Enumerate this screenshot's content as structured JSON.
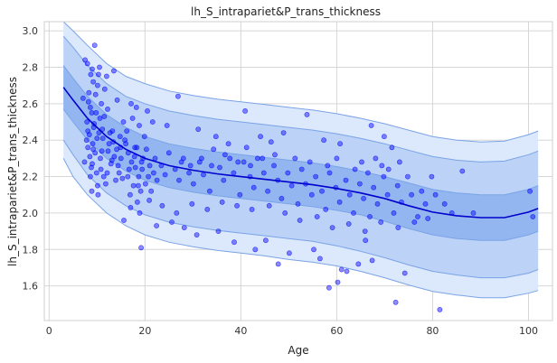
{
  "chart_data": {
    "type": "scatter",
    "title": "lh_S_intrapariet&P_trans_thickness",
    "xlabel": "Age",
    "ylabel": "lh_S_intrapariet&P_trans_thickness",
    "xlim": [
      -1,
      105
    ],
    "ylim": [
      1.41,
      3.05
    ],
    "xticks": [
      0,
      20,
      40,
      60,
      80,
      100
    ],
    "yticks": [
      1.6,
      1.8,
      2.0,
      2.2,
      2.4,
      2.6,
      2.8,
      3.0
    ],
    "grid": true,
    "colors": {
      "points": "#0000ff",
      "median_line": "#0000cc",
      "band_outer": "#dce8fb",
      "band_mid": "#bcd3f7",
      "band_inner": "#93b6f1",
      "band_edge": "#7aa3e6"
    },
    "centile_curves": {
      "x": [
        3,
        5,
        8,
        12,
        16,
        20,
        25,
        30,
        35,
        40,
        45,
        50,
        55,
        60,
        65,
        70,
        75,
        80,
        85,
        90,
        95,
        100,
        102
      ],
      "p50": [
        2.69,
        2.62,
        2.52,
        2.42,
        2.35,
        2.3,
        2.26,
        2.235,
        2.215,
        2.2,
        2.185,
        2.17,
        2.155,
        2.135,
        2.11,
        2.08,
        2.04,
        2.005,
        1.985,
        1.975,
        1.975,
        2.005,
        2.025
      ],
      "p25": [
        2.57,
        2.5,
        2.4,
        2.3,
        2.23,
        2.18,
        2.14,
        2.115,
        2.095,
        2.08,
        2.065,
        2.05,
        2.035,
        2.015,
        1.99,
        1.955,
        1.915,
        1.88,
        1.86,
        1.85,
        1.85,
        1.88,
        1.9
      ],
      "p75": [
        2.81,
        2.74,
        2.64,
        2.54,
        2.47,
        2.42,
        2.38,
        2.355,
        2.335,
        2.32,
        2.305,
        2.29,
        2.275,
        2.255,
        2.23,
        2.2,
        2.165,
        2.13,
        2.11,
        2.1,
        2.1,
        2.13,
        2.15
      ],
      "p05": [
        2.4,
        2.32,
        2.21,
        2.11,
        2.04,
        1.99,
        1.95,
        1.925,
        1.905,
        1.89,
        1.875,
        1.86,
        1.845,
        1.82,
        1.79,
        1.755,
        1.715,
        1.68,
        1.66,
        1.645,
        1.645,
        1.67,
        1.69
      ],
      "p95": [
        2.97,
        2.91,
        2.81,
        2.71,
        2.64,
        2.6,
        2.56,
        2.535,
        2.515,
        2.5,
        2.485,
        2.47,
        2.455,
        2.435,
        2.41,
        2.38,
        2.345,
        2.31,
        2.29,
        2.28,
        2.285,
        2.32,
        2.34
      ],
      "p01": [
        2.3,
        2.2,
        2.1,
        2.0,
        1.93,
        1.88,
        1.84,
        1.815,
        1.795,
        1.78,
        1.765,
        1.745,
        1.73,
        1.71,
        1.68,
        1.645,
        1.605,
        1.57,
        1.55,
        1.535,
        1.535,
        1.56,
        1.575
      ],
      "p99": [
        3.05,
        3.0,
        2.92,
        2.82,
        2.75,
        2.71,
        2.67,
        2.645,
        2.625,
        2.61,
        2.595,
        2.58,
        2.565,
        2.545,
        2.52,
        2.49,
        2.455,
        2.42,
        2.4,
        2.39,
        2.395,
        2.43,
        2.45
      ]
    },
    "points": [
      [
        7.5,
        2.84
      ],
      [
        8.0,
        2.82
      ],
      [
        9.0,
        2.79
      ],
      [
        10.5,
        2.8
      ],
      [
        13.5,
        2.78
      ],
      [
        9.2,
        2.72
      ],
      [
        8.3,
        2.66
      ],
      [
        10.1,
        2.7
      ],
      [
        11.6,
        2.68
      ],
      [
        7.1,
        2.63
      ],
      [
        8.6,
        2.58
      ],
      [
        9.8,
        2.55
      ],
      [
        10.9,
        2.6
      ],
      [
        12.2,
        2.57
      ],
      [
        7.9,
        2.5
      ],
      [
        9.3,
        2.47
      ],
      [
        10.4,
        2.44
      ],
      [
        11.2,
        2.41
      ],
      [
        8.1,
        2.36
      ],
      [
        9.6,
        2.33
      ],
      [
        10.7,
        2.3
      ],
      [
        7.4,
        2.28
      ],
      [
        8.8,
        2.25
      ],
      [
        9.9,
        2.22
      ],
      [
        11.4,
        2.2
      ],
      [
        12.5,
        2.38
      ],
      [
        13.2,
        2.45
      ],
      [
        14.1,
        2.35
      ],
      [
        15.0,
        2.3
      ],
      [
        14.6,
        2.22
      ],
      [
        13.9,
        2.18
      ],
      [
        15.8,
        2.4
      ],
      [
        16.5,
        2.33
      ],
      [
        17.2,
        2.28
      ],
      [
        18.0,
        2.25
      ],
      [
        18.7,
        2.2
      ],
      [
        17.6,
        2.15
      ],
      [
        16.9,
        2.1
      ],
      [
        18.4,
        2.06
      ],
      [
        19.1,
        2.12
      ],
      [
        19.6,
        2.3
      ],
      [
        20.3,
        2.35
      ],
      [
        21.0,
        2.26
      ],
      [
        21.8,
        2.22
      ],
      [
        22.5,
        2.18
      ],
      [
        19.9,
        2.42
      ],
      [
        18.8,
        2.48
      ],
      [
        17.4,
        2.52
      ],
      [
        16.2,
        2.45
      ],
      [
        15.5,
        2.5
      ],
      [
        8.9,
        2.12
      ],
      [
        10.2,
        2.1
      ],
      [
        11.8,
        2.16
      ],
      [
        12.9,
        2.27
      ],
      [
        13.6,
        2.31
      ],
      [
        14.8,
        2.42
      ],
      [
        16.0,
        2.38
      ],
      [
        17.9,
        2.36
      ],
      [
        19.3,
        2.28
      ],
      [
        20.7,
        2.2
      ],
      [
        9.1,
        2.38
      ],
      [
        8.4,
        2.43
      ],
      [
        10.6,
        2.52
      ],
      [
        11.1,
        2.46
      ],
      [
        12.3,
        2.34
      ],
      [
        13.1,
        2.29
      ],
      [
        14.4,
        2.26
      ],
      [
        15.3,
        2.19
      ],
      [
        16.7,
        2.24
      ],
      [
        17.8,
        2.31
      ],
      [
        18.3,
        2.36
      ],
      [
        19.4,
        2.24
      ],
      [
        20.1,
        2.16
      ],
      [
        21.3,
        2.12
      ],
      [
        22.1,
        2.3
      ],
      [
        23.4,
        2.26
      ],
      [
        24.2,
        2.21
      ],
      [
        25.0,
        2.33
      ],
      [
        26.3,
        2.24
      ],
      [
        27.1,
        2.18
      ],
      [
        28.0,
        2.3
      ],
      [
        29.2,
        2.22
      ],
      [
        30.1,
        2.16
      ],
      [
        31.4,
        2.28
      ],
      [
        32.2,
        2.21
      ],
      [
        33.5,
        2.12
      ],
      [
        34.3,
        2.35
      ],
      [
        35.6,
        2.25
      ],
      [
        36.4,
        2.18
      ],
      [
        37.7,
        2.3
      ],
      [
        38.5,
        2.22
      ],
      [
        39.8,
        2.1
      ],
      [
        40.6,
        2.28
      ],
      [
        41.9,
        2.2
      ],
      [
        42.7,
        2.14
      ],
      [
        43.5,
        2.3
      ],
      [
        44.8,
        2.22
      ],
      [
        45.6,
        2.12
      ],
      [
        46.9,
        2.26
      ],
      [
        47.7,
        2.18
      ],
      [
        48.5,
        2.08
      ],
      [
        49.8,
        2.22
      ],
      [
        50.6,
        2.15
      ],
      [
        51.9,
        2.05
      ],
      [
        52.7,
        2.24
      ],
      [
        53.5,
        2.16
      ],
      [
        54.8,
        2.1
      ],
      [
        55.6,
        2.2
      ],
      [
        56.9,
        2.12
      ],
      [
        57.7,
        2.02
      ],
      [
        58.5,
        2.22
      ],
      [
        59.8,
        2.14
      ],
      [
        60.6,
        2.06
      ],
      [
        61.9,
        2.18
      ],
      [
        62.7,
        2.1
      ],
      [
        63.5,
        2.0
      ],
      [
        64.8,
        2.16
      ],
      [
        65.6,
        2.08
      ],
      [
        66.9,
        1.98
      ],
      [
        67.7,
        2.14
      ],
      [
        68.5,
        2.05
      ],
      [
        69.8,
        2.2
      ],
      [
        70.6,
        2.1
      ],
      [
        71.9,
        2.0
      ],
      [
        72.7,
        2.15
      ],
      [
        73.5,
        2.06
      ],
      [
        74.8,
        2.2
      ],
      [
        75.6,
        2.1
      ],
      [
        76.9,
        1.98
      ],
      [
        77.7,
        2.12
      ],
      [
        78.5,
        2.05
      ],
      [
        79.8,
        2.2
      ],
      [
        80.6,
        2.1
      ],
      [
        82.5,
        2.05
      ],
      [
        84.0,
        2.0
      ],
      [
        86.2,
        2.23
      ],
      [
        88.5,
        2.0
      ],
      [
        100.3,
        2.12
      ],
      [
        100.9,
        1.98
      ],
      [
        81.5,
        1.47
      ],
      [
        72.3,
        1.51
      ],
      [
        58.4,
        1.59
      ],
      [
        60.2,
        1.62
      ],
      [
        62.1,
        1.68
      ],
      [
        64.5,
        1.72
      ],
      [
        66.0,
        1.85
      ],
      [
        67.4,
        1.74
      ],
      [
        74.2,
        1.67
      ],
      [
        61.0,
        1.69
      ],
      [
        56.5,
        1.75
      ],
      [
        55.2,
        1.8
      ],
      [
        50.1,
        1.78
      ],
      [
        47.8,
        1.72
      ],
      [
        45.2,
        1.85
      ],
      [
        43.0,
        1.8
      ],
      [
        38.6,
        1.84
      ],
      [
        35.3,
        1.9
      ],
      [
        30.8,
        1.88
      ],
      [
        28.2,
        1.92
      ],
      [
        25.6,
        1.95
      ],
      [
        22.4,
        1.93
      ],
      [
        19.2,
        1.81
      ],
      [
        15.6,
        1.96
      ],
      [
        18.9,
        2.0
      ],
      [
        17.0,
        2.03
      ],
      [
        20.9,
        2.07
      ],
      [
        23.6,
        2.04
      ],
      [
        26.6,
        2.0
      ],
      [
        29.8,
        2.05
      ],
      [
        33.0,
        2.02
      ],
      [
        36.1,
        2.06
      ],
      [
        39.2,
        2.04
      ],
      [
        42.3,
        2.02
      ],
      [
        45.9,
        2.04
      ],
      [
        49.2,
        2.0
      ],
      [
        52.3,
        1.96
      ],
      [
        55.9,
        1.98
      ],
      [
        59.1,
        1.92
      ],
      [
        62.5,
        1.94
      ],
      [
        65.9,
        1.9
      ],
      [
        69.2,
        1.95
      ],
      [
        72.8,
        1.92
      ],
      [
        76.2,
        1.95
      ],
      [
        79.0,
        1.97
      ],
      [
        37.4,
        2.38
      ],
      [
        40.9,
        2.56
      ],
      [
        53.8,
        2.54
      ],
      [
        67.2,
        2.48
      ],
      [
        69.9,
        2.42
      ],
      [
        71.5,
        2.36
      ],
      [
        60.7,
        2.38
      ],
      [
        57.3,
        2.4
      ],
      [
        48.9,
        2.44
      ],
      [
        46.3,
        2.39
      ],
      [
        44.1,
        2.42
      ],
      [
        41.2,
        2.36
      ],
      [
        34.8,
        2.42
      ],
      [
        31.1,
        2.46
      ],
      [
        26.9,
        2.64
      ],
      [
        24.6,
        2.48
      ],
      [
        21.6,
        2.5
      ],
      [
        20.5,
        2.56
      ],
      [
        17.1,
        2.6
      ],
      [
        18.2,
        2.58
      ],
      [
        14.2,
        2.62
      ],
      [
        9.5,
        2.92
      ],
      [
        12.0,
        2.75
      ],
      [
        8.7,
        2.76
      ],
      [
        10.3,
        2.76
      ],
      [
        9.7,
        2.65
      ],
      [
        8.2,
        2.61
      ],
      [
        8.9,
        2.55
      ],
      [
        9.4,
        2.49
      ],
      [
        10.0,
        2.41
      ],
      [
        8.5,
        2.31
      ],
      [
        9.0,
        2.27
      ],
      [
        10.8,
        2.24
      ],
      [
        11.5,
        2.53
      ],
      [
        12.7,
        2.44
      ],
      [
        13.4,
        2.39
      ],
      [
        8.1,
        2.45
      ],
      [
        9.2,
        2.35
      ],
      [
        10.1,
        2.15
      ],
      [
        7.8,
        2.4
      ],
      [
        8.6,
        2.2
      ],
      [
        11.0,
        2.34
      ],
      [
        12.1,
        2.22
      ],
      [
        14.9,
        2.36
      ],
      [
        16.4,
        2.2
      ],
      [
        18.6,
        2.15
      ],
      [
        63.8,
        2.24
      ],
      [
        65.2,
        2.28
      ],
      [
        66.5,
        2.22
      ],
      [
        68.1,
        2.3
      ],
      [
        69.4,
        2.26
      ],
      [
        70.8,
        2.24
      ],
      [
        73.1,
        2.28
      ],
      [
        60.0,
        2.3
      ],
      [
        58.1,
        2.26
      ],
      [
        54.4,
        2.28
      ],
      [
        51.3,
        2.3
      ],
      [
        47.1,
        2.32
      ],
      [
        44.5,
        2.3
      ],
      [
        42.0,
        2.26
      ],
      [
        39.4,
        2.28
      ],
      [
        36.7,
        2.32
      ],
      [
        33.9,
        2.26
      ],
      [
        31.8,
        2.3
      ],
      [
        29.5,
        2.26
      ],
      [
        27.6,
        2.28
      ]
    ]
  }
}
